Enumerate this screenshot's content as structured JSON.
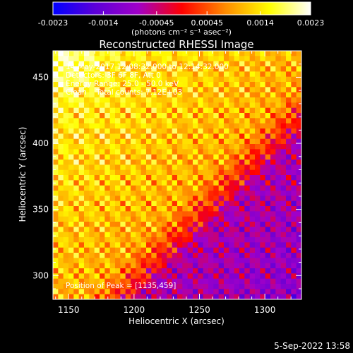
{
  "chart_data": {
    "type": "heatmap",
    "title": "Reconstructed RHESSI Image",
    "xlabel": "Heliocentric X (arcsec)",
    "ylabel": "Heliocentric Y (arcsec)",
    "xlim": [
      1138,
      1328
    ],
    "ylim": [
      282,
      470
    ],
    "xticks": [
      1150,
      1200,
      1250,
      1300
    ],
    "yticks": [
      300,
      350,
      400,
      450
    ],
    "colorbar": {
      "ticks": [
        "-0.0023",
        "-0.0014",
        "-0.00045",
        "0.00045",
        "0.0014",
        "0.0023"
      ],
      "tick_values": [
        -0.0023,
        -0.0014,
        -0.00045,
        0.00045,
        0.0014,
        0.0023
      ],
      "range": [
        -0.0023,
        0.0023
      ],
      "unit_label": "(photons cm⁻² s⁻¹ asec⁻²)",
      "colors": [
        "#0000ff",
        "#5a00d8",
        "#a000c8",
        "#ff0000",
        "#ff8c00",
        "#ffff00",
        "#ffffff"
      ]
    },
    "annotations": [
      "14-May-2017 12:08:32.000 to 12:14:32.000",
      "Detectors: 3F 6F 8F, Att 0",
      "Energy Range: 25.0 - 50.0 keV",
      "Clean    Total counts: 7.12E+03"
    ],
    "peak_label": "Position of Peak = [1135,459]",
    "peak": [
      1135,
      459
    ]
  },
  "footer": {
    "timestamp": "5-Sep-2022 13:58"
  }
}
